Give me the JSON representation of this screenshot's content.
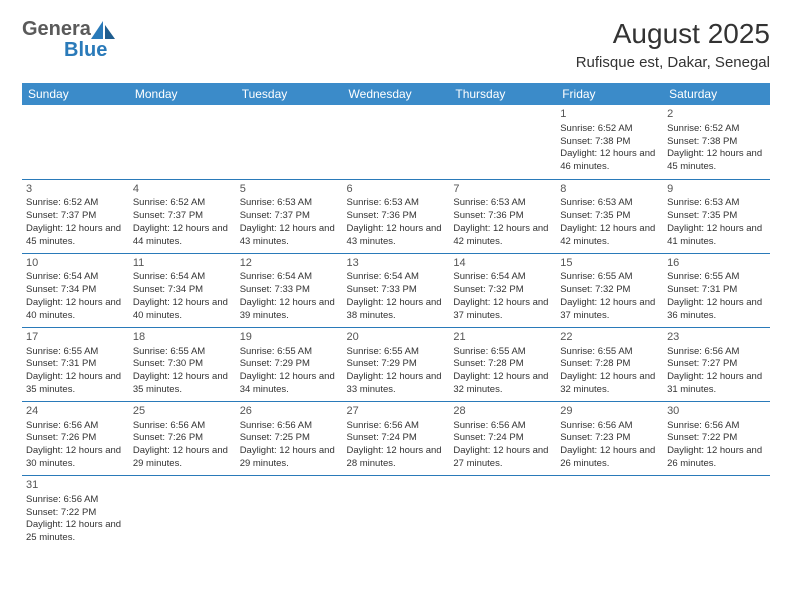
{
  "logo": {
    "text1": "Genera",
    "text2": "Blue"
  },
  "title": "August 2025",
  "location": "Rufisque est, Dakar, Senegal",
  "colors": {
    "header_bg": "#3b8bc9",
    "header_text": "#ffffff",
    "border": "#2a7ab9",
    "text": "#333333",
    "logo_gray": "#5a5a5a",
    "logo_blue": "#2a7ab9"
  },
  "day_headers": [
    "Sunday",
    "Monday",
    "Tuesday",
    "Wednesday",
    "Thursday",
    "Friday",
    "Saturday"
  ],
  "weeks": [
    [
      null,
      null,
      null,
      null,
      null,
      {
        "n": "1",
        "sr": "6:52 AM",
        "ss": "7:38 PM",
        "dl": "12 hours and 46 minutes."
      },
      {
        "n": "2",
        "sr": "6:52 AM",
        "ss": "7:38 PM",
        "dl": "12 hours and 45 minutes."
      }
    ],
    [
      {
        "n": "3",
        "sr": "6:52 AM",
        "ss": "7:37 PM",
        "dl": "12 hours and 45 minutes."
      },
      {
        "n": "4",
        "sr": "6:52 AM",
        "ss": "7:37 PM",
        "dl": "12 hours and 44 minutes."
      },
      {
        "n": "5",
        "sr": "6:53 AM",
        "ss": "7:37 PM",
        "dl": "12 hours and 43 minutes."
      },
      {
        "n": "6",
        "sr": "6:53 AM",
        "ss": "7:36 PM",
        "dl": "12 hours and 43 minutes."
      },
      {
        "n": "7",
        "sr": "6:53 AM",
        "ss": "7:36 PM",
        "dl": "12 hours and 42 minutes."
      },
      {
        "n": "8",
        "sr": "6:53 AM",
        "ss": "7:35 PM",
        "dl": "12 hours and 42 minutes."
      },
      {
        "n": "9",
        "sr": "6:53 AM",
        "ss": "7:35 PM",
        "dl": "12 hours and 41 minutes."
      }
    ],
    [
      {
        "n": "10",
        "sr": "6:54 AM",
        "ss": "7:34 PM",
        "dl": "12 hours and 40 minutes."
      },
      {
        "n": "11",
        "sr": "6:54 AM",
        "ss": "7:34 PM",
        "dl": "12 hours and 40 minutes."
      },
      {
        "n": "12",
        "sr": "6:54 AM",
        "ss": "7:33 PM",
        "dl": "12 hours and 39 minutes."
      },
      {
        "n": "13",
        "sr": "6:54 AM",
        "ss": "7:33 PM",
        "dl": "12 hours and 38 minutes."
      },
      {
        "n": "14",
        "sr": "6:54 AM",
        "ss": "7:32 PM",
        "dl": "12 hours and 37 minutes."
      },
      {
        "n": "15",
        "sr": "6:55 AM",
        "ss": "7:32 PM",
        "dl": "12 hours and 37 minutes."
      },
      {
        "n": "16",
        "sr": "6:55 AM",
        "ss": "7:31 PM",
        "dl": "12 hours and 36 minutes."
      }
    ],
    [
      {
        "n": "17",
        "sr": "6:55 AM",
        "ss": "7:31 PM",
        "dl": "12 hours and 35 minutes."
      },
      {
        "n": "18",
        "sr": "6:55 AM",
        "ss": "7:30 PM",
        "dl": "12 hours and 35 minutes."
      },
      {
        "n": "19",
        "sr": "6:55 AM",
        "ss": "7:29 PM",
        "dl": "12 hours and 34 minutes."
      },
      {
        "n": "20",
        "sr": "6:55 AM",
        "ss": "7:29 PM",
        "dl": "12 hours and 33 minutes."
      },
      {
        "n": "21",
        "sr": "6:55 AM",
        "ss": "7:28 PM",
        "dl": "12 hours and 32 minutes."
      },
      {
        "n": "22",
        "sr": "6:55 AM",
        "ss": "7:28 PM",
        "dl": "12 hours and 32 minutes."
      },
      {
        "n": "23",
        "sr": "6:56 AM",
        "ss": "7:27 PM",
        "dl": "12 hours and 31 minutes."
      }
    ],
    [
      {
        "n": "24",
        "sr": "6:56 AM",
        "ss": "7:26 PM",
        "dl": "12 hours and 30 minutes."
      },
      {
        "n": "25",
        "sr": "6:56 AM",
        "ss": "7:26 PM",
        "dl": "12 hours and 29 minutes."
      },
      {
        "n": "26",
        "sr": "6:56 AM",
        "ss": "7:25 PM",
        "dl": "12 hours and 29 minutes."
      },
      {
        "n": "27",
        "sr": "6:56 AM",
        "ss": "7:24 PM",
        "dl": "12 hours and 28 minutes."
      },
      {
        "n": "28",
        "sr": "6:56 AM",
        "ss": "7:24 PM",
        "dl": "12 hours and 27 minutes."
      },
      {
        "n": "29",
        "sr": "6:56 AM",
        "ss": "7:23 PM",
        "dl": "12 hours and 26 minutes."
      },
      {
        "n": "30",
        "sr": "6:56 AM",
        "ss": "7:22 PM",
        "dl": "12 hours and 26 minutes."
      }
    ],
    [
      {
        "n": "31",
        "sr": "6:56 AM",
        "ss": "7:22 PM",
        "dl": "12 hours and 25 minutes."
      },
      null,
      null,
      null,
      null,
      null,
      null
    ]
  ],
  "labels": {
    "sunrise": "Sunrise:",
    "sunset": "Sunset:",
    "daylight": "Daylight:"
  }
}
